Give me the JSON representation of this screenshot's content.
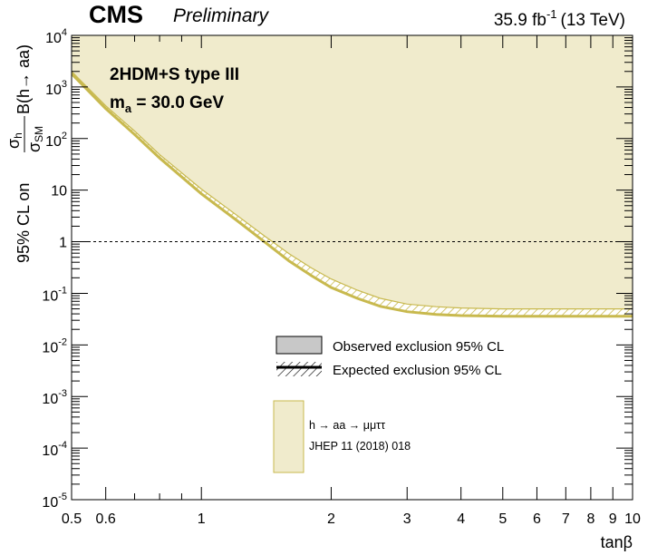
{
  "header": {
    "experiment": "CMS",
    "status": "Preliminary",
    "lumi_value": "35.9 fb",
    "lumi_exp": "-1",
    "lumi_energy": "(13 TeV)"
  },
  "model": {
    "line1": "2HDM+S type III",
    "line2_pre": "m",
    "line2_sub": "a",
    "line2_post": " = 30.0 GeV"
  },
  "legend": {
    "observed": "Observed exclusion 95% CL",
    "expected": "Expected exclusion 95% CL",
    "channel": "h → aa → μμττ",
    "reference": "JHEP 11 (2018) 018"
  },
  "colors": {
    "fill": "#f0ebcc",
    "line": "#c8b94e",
    "observed_box": "#c8c8c8"
  },
  "chart_data": {
    "type": "line",
    "xlabel": "tanβ",
    "ylabel": {
      "prefix": "95% CL on ",
      "num": "σ",
      "num_sub": "h",
      "den": "σ",
      "den_sub": "SM",
      "suffix": "B(h→ aa)"
    },
    "xscale": "log",
    "yscale": "log",
    "xlim": [
      0.5,
      10
    ],
    "ylim": [
      1e-05,
      10000
    ],
    "x_ticks": [
      "0.5",
      "0.6",
      "1",
      "2",
      "3",
      "4",
      "5",
      "6",
      "7",
      "8",
      "9",
      "10"
    ],
    "x_tick_values": [
      0.5,
      0.6,
      1,
      2,
      3,
      4,
      5,
      6,
      7,
      8,
      9,
      10
    ],
    "y_ticks": [
      {
        "base": "10",
        "exp": "-5"
      },
      {
        "base": "10",
        "exp": "-4"
      },
      {
        "base": "10",
        "exp": "-3"
      },
      {
        "base": "10",
        "exp": "-2"
      },
      {
        "base": "10",
        "exp": "-1"
      },
      {
        "base": "1",
        "exp": ""
      },
      {
        "base": "10",
        "exp": ""
      },
      {
        "base": "10",
        "exp": "2"
      },
      {
        "base": "10",
        "exp": "3"
      },
      {
        "base": "10",
        "exp": "4"
      }
    ],
    "y_tick_values": [
      1e-05,
      0.0001,
      0.001,
      0.01,
      0.1,
      1,
      10,
      100,
      1000,
      10000
    ],
    "reference_line": 1,
    "series": [
      {
        "name": "Observed exclusion 95% CL",
        "x": [
          0.5,
          0.6,
          0.7,
          0.8,
          1.0,
          1.2,
          1.4,
          1.6,
          1.8,
          2.0,
          2.3,
          2.6,
          3.0,
          3.5,
          4.0,
          5.0,
          6.0,
          7.0,
          8.0,
          9.0,
          10.0
        ],
        "y": [
          1800,
          380,
          120,
          42,
          8.5,
          2.7,
          1.0,
          0.42,
          0.22,
          0.13,
          0.08,
          0.056,
          0.044,
          0.039,
          0.037,
          0.036,
          0.036,
          0.036,
          0.036,
          0.036,
          0.036
        ]
      },
      {
        "name": "Expected exclusion 95% CL",
        "x": [
          0.5,
          0.6,
          0.7,
          0.8,
          1.0,
          1.2,
          1.4,
          1.6,
          1.8,
          2.0,
          2.3,
          2.6,
          3.0,
          3.5,
          4.0,
          5.0,
          6.0,
          7.0,
          8.0,
          9.0,
          10.0
        ],
        "y": [
          2000,
          430,
          140,
          49,
          10.5,
          3.4,
          1.3,
          0.58,
          0.31,
          0.19,
          0.115,
          0.08,
          0.062,
          0.055,
          0.052,
          0.05,
          0.05,
          0.05,
          0.05,
          0.05,
          0.05
        ]
      }
    ]
  }
}
